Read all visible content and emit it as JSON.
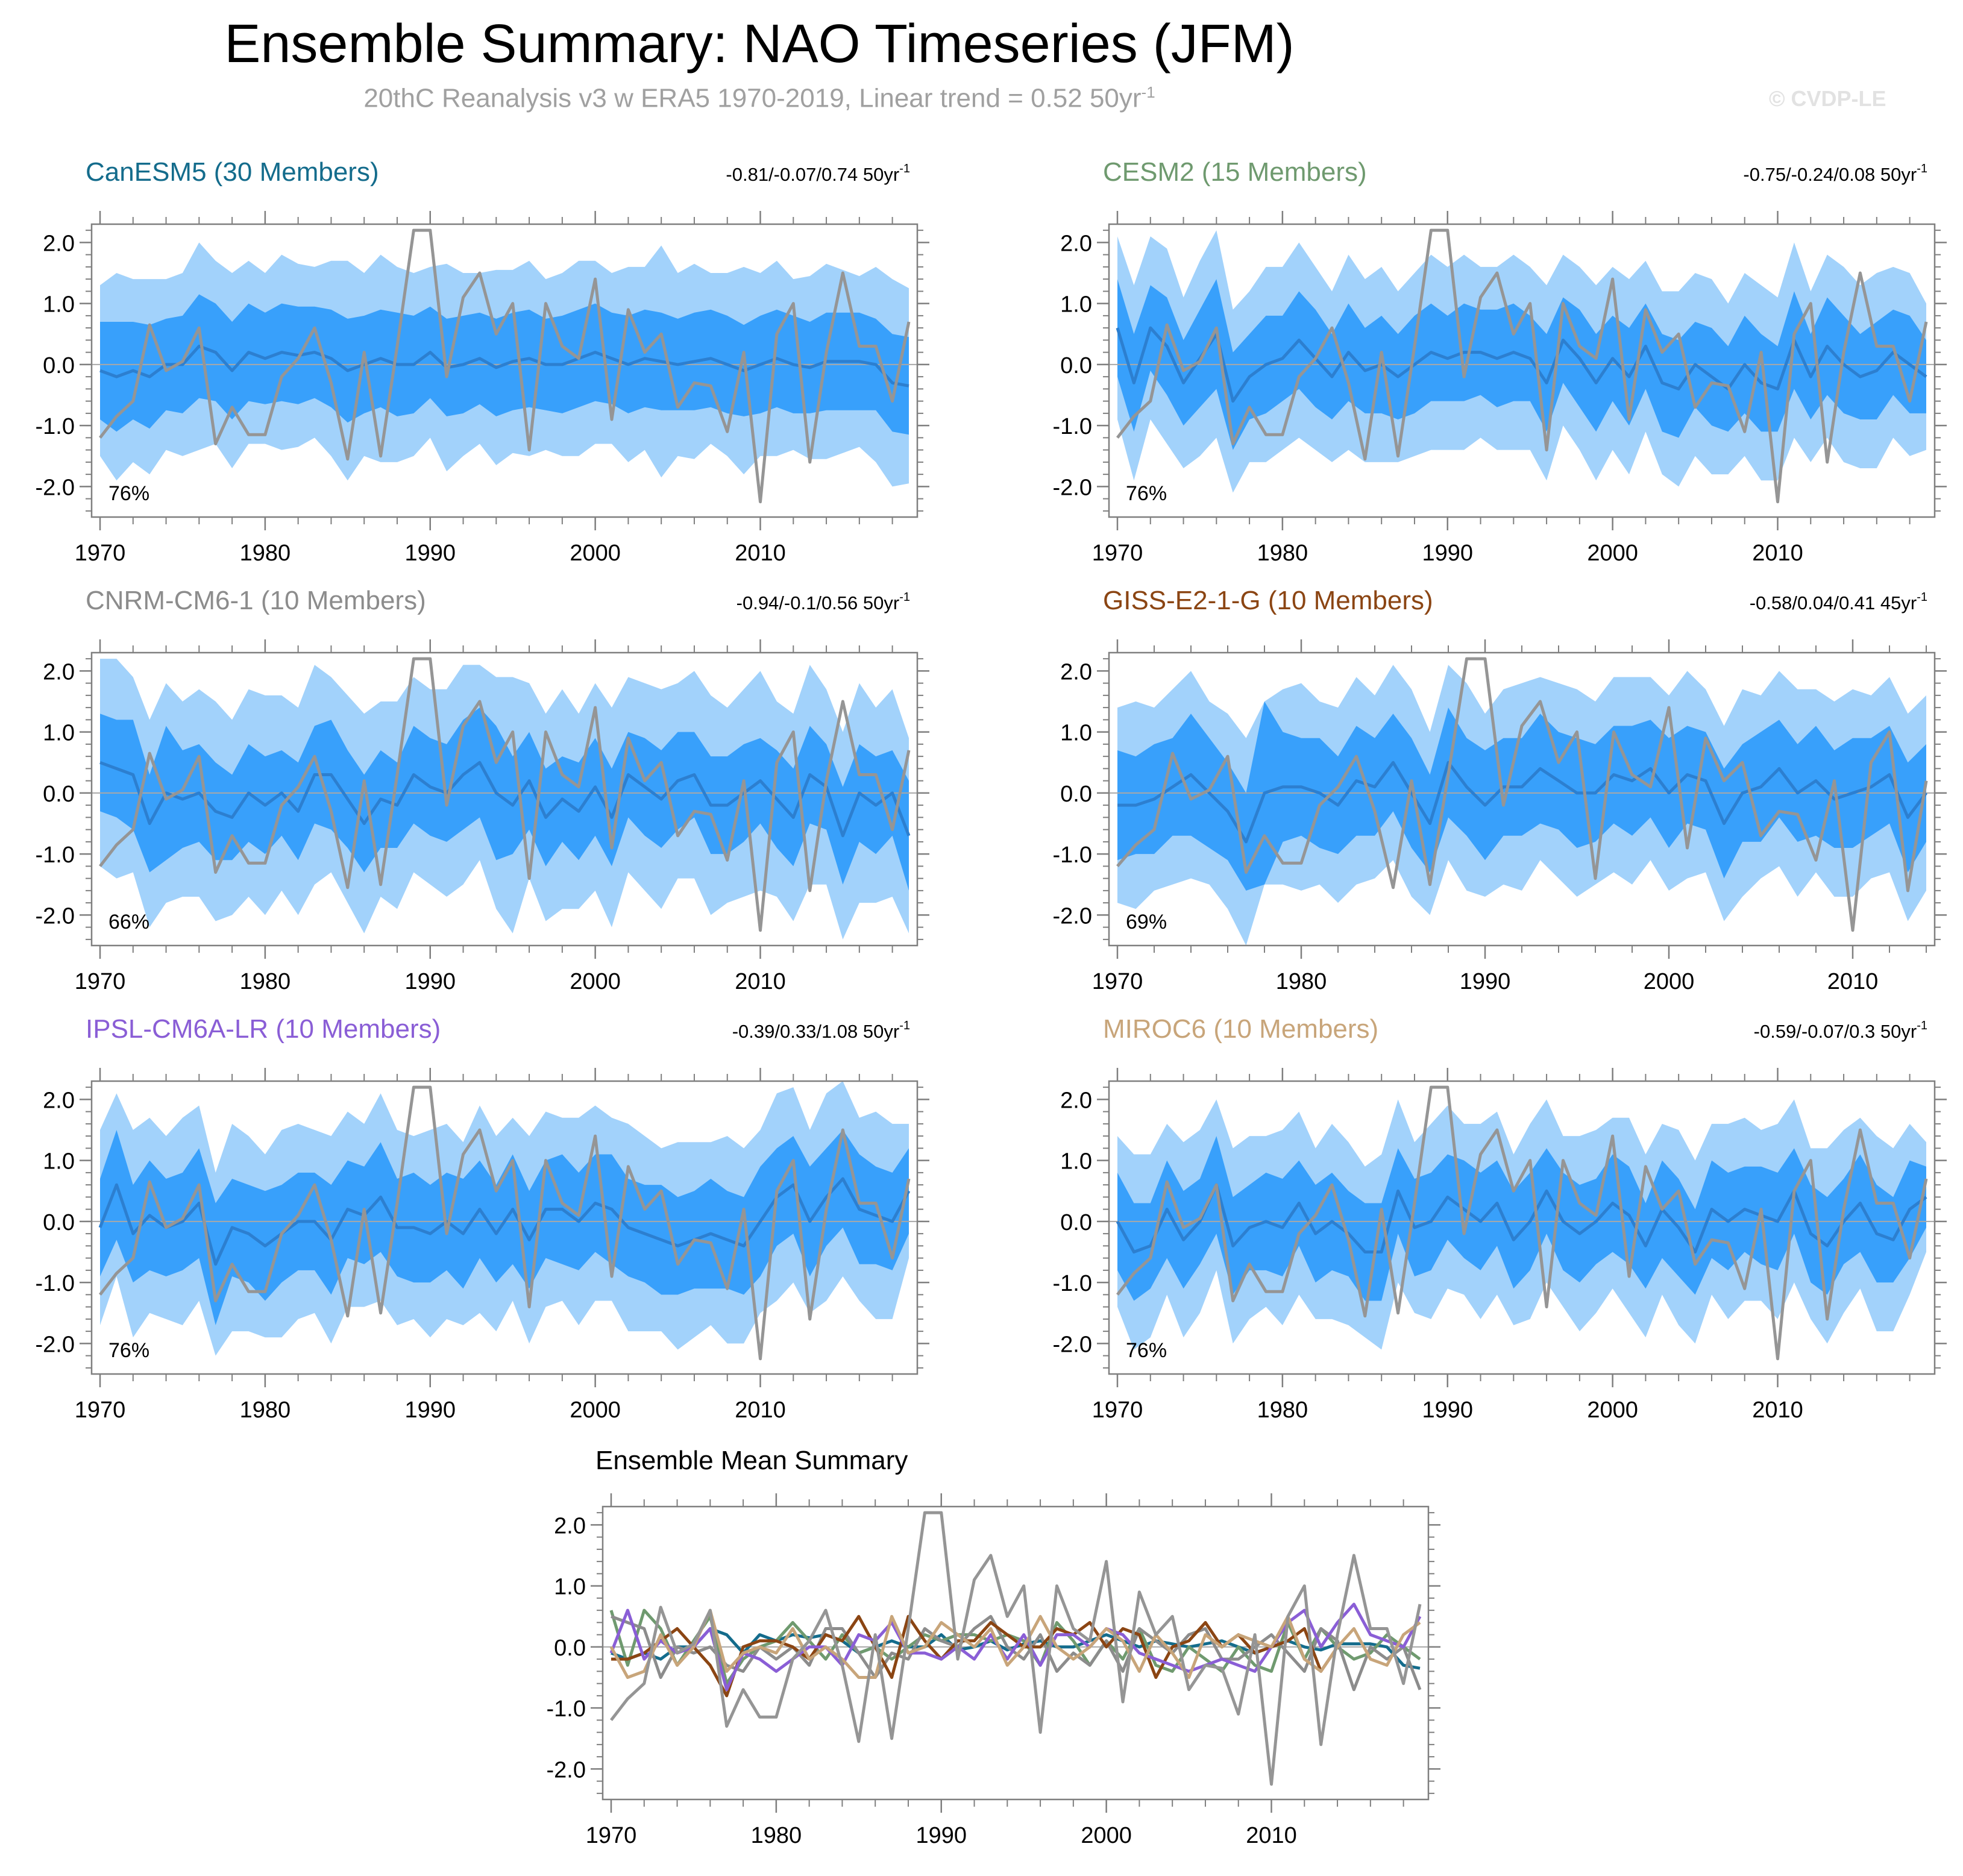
{
  "title": "Ensemble Summary: NAO Timeseries (JFM)",
  "subtitle": {
    "text": "20thC Reanalysis v3 w ERA5 1970-2019, Linear trend = 0.52 50yr",
    "superscript": "-1"
  },
  "watermark": "© CVDP-LE",
  "colors": {
    "band_outer": "#a2d2fb",
    "band_inner": "#38a0fb",
    "ensemble_mean": "#2c7fd0",
    "observations": "#959595",
    "zero_line": "#a8a8a8",
    "axis": "#7f7f7f"
  },
  "chart_data": {
    "type": "line",
    "x": [
      1970,
      1971,
      1972,
      1973,
      1974,
      1975,
      1976,
      1977,
      1978,
      1979,
      1980,
      1981,
      1982,
      1983,
      1984,
      1985,
      1986,
      1987,
      1988,
      1989,
      1990,
      1991,
      1992,
      1993,
      1994,
      1995,
      1996,
      1997,
      1998,
      1999,
      2000,
      2001,
      2002,
      2003,
      2004,
      2005,
      2006,
      2007,
      2008,
      2009,
      2010,
      2011,
      2012,
      2013,
      2014,
      2015,
      2016,
      2017,
      2018,
      2019
    ],
    "observations": {
      "name": "20thC Reanalysis v3 w ERA5",
      "values": [
        -1.2,
        -0.85,
        -0.6,
        0.65,
        -0.1,
        0.05,
        0.6,
        -1.3,
        -0.7,
        -1.15,
        -1.15,
        -0.2,
        0.1,
        0.6,
        -0.3,
        -1.55,
        0.2,
        -1.5,
        0.3,
        2.2,
        2.2,
        -0.2,
        1.1,
        1.5,
        0.5,
        1.0,
        -1.4,
        1.0,
        0.3,
        0.1,
        1.4,
        -0.9,
        0.9,
        0.2,
        0.5,
        -0.7,
        -0.3,
        -0.35,
        -1.1,
        0.2,
        -2.25,
        0.5,
        1.0,
        -1.6,
        0.2,
        1.5,
        0.3,
        0.3,
        -0.6,
        0.7
      ]
    },
    "panels": [
      {
        "name": "CanESM5 (30 Members)",
        "title_color": "#146c8c",
        "trend_label": "-0.81/-0.07/0.74 50yr",
        "trend_sup": "-1",
        "pct": "76%",
        "x_end": 2019,
        "mean": [
          -0.1,
          -0.2,
          -0.1,
          -0.2,
          0.0,
          0.0,
          0.3,
          0.2,
          -0.1,
          0.2,
          0.1,
          0.2,
          0.15,
          0.2,
          0.1,
          -0.1,
          0.0,
          0.1,
          0.0,
          0.0,
          0.2,
          -0.05,
          0.0,
          0.1,
          -0.05,
          0.05,
          0.1,
          0.0,
          0.0,
          0.1,
          0.2,
          0.1,
          0.0,
          0.1,
          0.05,
          0.0,
          0.05,
          0.1,
          0.0,
          -0.1,
          0.0,
          0.1,
          0.0,
          -0.05,
          0.05,
          0.05,
          0.05,
          0.0,
          -0.3,
          -0.35
        ],
        "inner_halfwidth": [
          0.8,
          0.9,
          0.8,
          0.85,
          0.75,
          0.8,
          0.85,
          0.8,
          0.8,
          0.8,
          0.75,
          0.8,
          0.8,
          0.75,
          0.8,
          0.85,
          0.8,
          0.8,
          0.85,
          0.8,
          0.75,
          0.8,
          0.8,
          0.75,
          0.8,
          0.8,
          0.8,
          0.75,
          0.8,
          0.8,
          0.8,
          0.75,
          0.8,
          0.8,
          0.8,
          0.75,
          0.8,
          0.8,
          0.8,
          0.75,
          0.8,
          0.8,
          0.8,
          0.75,
          0.8,
          0.8,
          0.8,
          0.75,
          0.8,
          0.8
        ],
        "outer_halfwidth": [
          1.4,
          1.7,
          1.5,
          1.6,
          1.4,
          1.5,
          1.7,
          1.5,
          1.6,
          1.5,
          1.4,
          1.6,
          1.5,
          1.4,
          1.6,
          1.8,
          1.5,
          1.7,
          1.6,
          1.5,
          1.4,
          1.7,
          1.5,
          1.4,
          1.6,
          1.5,
          1.6,
          1.4,
          1.5,
          1.6,
          1.5,
          1.4,
          1.6,
          1.5,
          1.9,
          1.5,
          1.6,
          1.4,
          1.5,
          1.7,
          1.5,
          1.6,
          1.4,
          1.5,
          1.6,
          1.5,
          1.4,
          1.6,
          1.7,
          1.6
        ]
      },
      {
        "name": "CESM2 (15 Members)",
        "title_color": "#6f9a6f",
        "trend_label": "-0.75/-0.24/0.08 50yr",
        "trend_sup": "-1",
        "pct": "76%",
        "x_end": 2019,
        "mean": [
          0.6,
          -0.3,
          0.6,
          0.3,
          -0.3,
          0.1,
          0.5,
          -0.6,
          -0.2,
          0.0,
          0.1,
          0.4,
          0.1,
          -0.2,
          0.2,
          -0.1,
          0.0,
          -0.2,
          0.0,
          0.2,
          0.1,
          0.2,
          0.2,
          0.1,
          0.2,
          0.1,
          -0.3,
          0.4,
          0.1,
          -0.3,
          0.1,
          -0.2,
          0.3,
          -0.3,
          -0.4,
          0.0,
          -0.2,
          -0.4,
          0.0,
          -0.3,
          -0.4,
          0.4,
          -0.2,
          0.3,
          0.0,
          -0.2,
          -0.1,
          0.2,
          0.0,
          -0.2
        ],
        "inner_halfwidth": [
          0.8,
          0.8,
          0.7,
          0.8,
          0.7,
          0.8,
          0.9,
          0.8,
          0.7,
          0.8,
          0.7,
          0.8,
          0.8,
          0.7,
          0.8,
          0.7,
          0.8,
          0.7,
          0.8,
          0.8,
          0.7,
          0.8,
          0.7,
          0.8,
          0.8,
          0.7,
          0.8,
          0.7,
          0.8,
          0.8,
          0.7,
          0.8,
          0.7,
          0.8,
          0.8,
          0.7,
          0.8,
          0.7,
          0.8,
          0.8,
          0.7,
          0.8,
          0.7,
          0.8,
          0.8,
          0.7,
          0.8,
          0.7,
          0.8,
          0.6
        ],
        "outer_halfwidth": [
          1.5,
          1.6,
          1.5,
          1.6,
          1.4,
          1.6,
          1.7,
          1.5,
          1.4,
          1.6,
          1.5,
          1.6,
          1.5,
          1.4,
          1.6,
          1.5,
          1.6,
          1.4,
          1.5,
          1.6,
          1.5,
          1.6,
          1.4,
          1.5,
          1.6,
          1.5,
          1.6,
          1.4,
          1.5,
          1.6,
          1.5,
          1.6,
          1.4,
          1.5,
          1.6,
          1.5,
          1.6,
          1.4,
          1.5,
          1.6,
          1.5,
          1.6,
          1.4,
          1.5,
          1.6,
          1.5,
          1.6,
          1.4,
          1.5,
          1.2
        ]
      },
      {
        "name": "CNRM-CM6-1 (10 Members)",
        "title_color": "#8c8c8c",
        "trend_label": "-0.94/-0.1/0.56 50yr",
        "trend_sup": "-1",
        "pct": "66%",
        "x_end": 2019,
        "mean": [
          0.5,
          0.4,
          0.3,
          -0.5,
          0.0,
          -0.1,
          0.0,
          -0.3,
          -0.4,
          0.0,
          -0.2,
          0.0,
          -0.3,
          0.3,
          0.3,
          -0.1,
          -0.5,
          -0.1,
          -0.2,
          0.3,
          0.1,
          0.0,
          0.3,
          0.5,
          0.0,
          -0.2,
          0.2,
          -0.4,
          -0.1,
          -0.3,
          0.1,
          -0.4,
          0.3,
          0.1,
          -0.1,
          0.2,
          0.3,
          -0.2,
          -0.2,
          0.0,
          0.2,
          -0.1,
          -0.4,
          0.3,
          0.1,
          -0.7,
          0.0,
          -0.2,
          0.0,
          -0.7
        ],
        "inner_halfwidth": [
          0.8,
          0.8,
          0.9,
          0.8,
          1.1,
          0.8,
          0.8,
          0.8,
          0.7,
          0.8,
          0.8,
          0.7,
          0.8,
          0.8,
          0.9,
          0.8,
          0.8,
          0.8,
          0.7,
          0.8,
          0.8,
          0.8,
          0.9,
          0.9,
          1.1,
          0.8,
          0.8,
          0.8,
          0.7,
          0.8,
          0.8,
          0.8,
          0.7,
          0.8,
          0.8,
          0.8,
          0.7,
          0.8,
          0.8,
          0.8,
          0.7,
          0.8,
          0.8,
          0.8,
          0.7,
          0.8,
          0.8,
          0.8,
          0.7,
          0.9
        ],
        "outer_halfwidth": [
          1.7,
          1.8,
          1.6,
          1.7,
          1.8,
          1.6,
          1.7,
          1.8,
          1.6,
          1.7,
          1.8,
          1.6,
          1.7,
          1.8,
          1.6,
          1.7,
          1.8,
          1.6,
          1.7,
          1.6,
          1.6,
          1.7,
          1.8,
          1.6,
          1.9,
          2.1,
          1.6,
          1.7,
          1.8,
          1.6,
          1.7,
          1.8,
          1.6,
          1.7,
          1.8,
          1.6,
          1.7,
          1.8,
          1.6,
          1.7,
          1.8,
          1.6,
          1.7,
          1.8,
          1.6,
          1.7,
          1.8,
          1.6,
          1.7,
          1.6
        ]
      },
      {
        "name": "GISS-E2-1-G (10 Members)",
        "title_color": "#8b4513",
        "trend_label": "-0.58/0.04/0.41 45yr",
        "trend_sup": "-1",
        "pct": "69%",
        "x_end": 2014,
        "mean": [
          -0.2,
          -0.2,
          -0.1,
          0.1,
          0.3,
          0.0,
          -0.3,
          -0.8,
          0.0,
          0.1,
          0.1,
          0.0,
          -0.2,
          0.2,
          0.1,
          0.5,
          0.0,
          -0.5,
          0.5,
          0.1,
          -0.2,
          0.1,
          0.1,
          0.4,
          0.2,
          0.0,
          0.0,
          0.3,
          0.2,
          0.4,
          0.0,
          0.3,
          0.2,
          -0.5,
          0.0,
          0.1,
          0.4,
          0.0,
          0.2,
          -0.1,
          0.0,
          0.1,
          0.3,
          -0.4,
          0.0
        ],
        "inner_halfwidth": [
          0.9,
          0.8,
          0.9,
          0.8,
          1.0,
          0.9,
          0.8,
          0.8,
          1.5,
          0.9,
          0.8,
          0.9,
          0.8,
          0.9,
          0.8,
          0.8,
          0.9,
          0.8,
          0.9,
          0.8,
          0.9,
          0.8,
          0.8,
          0.9,
          0.8,
          0.9,
          0.8,
          0.8,
          0.9,
          0.8,
          0.9,
          0.8,
          0.8,
          0.9,
          0.8,
          0.9,
          0.8,
          0.8,
          0.9,
          0.8,
          0.9,
          0.8,
          0.8,
          0.9,
          0.8
        ],
        "outer_halfwidth": [
          1.6,
          1.7,
          1.5,
          1.6,
          1.7,
          1.5,
          1.6,
          1.7,
          1.5,
          1.6,
          1.7,
          1.5,
          1.6,
          1.7,
          1.5,
          1.6,
          1.7,
          1.5,
          1.6,
          1.7,
          1.5,
          1.6,
          1.7,
          1.5,
          1.6,
          1.7,
          1.5,
          1.6,
          1.7,
          1.5,
          1.6,
          1.7,
          1.5,
          1.6,
          1.7,
          1.5,
          1.6,
          1.7,
          1.5,
          1.6,
          1.7,
          1.5,
          1.6,
          1.7,
          1.6
        ]
      },
      {
        "name": "IPSL-CM6A-LR (10 Members)",
        "title_color": "#8a5ed6",
        "trend_label": "-0.39/0.33/1.08 50yr",
        "trend_sup": "-1",
        "pct": "76%",
        "x_end": 2019,
        "mean": [
          -0.1,
          0.6,
          -0.2,
          0.1,
          -0.1,
          0.0,
          0.3,
          -0.7,
          -0.1,
          -0.2,
          -0.4,
          -0.2,
          0.0,
          0.0,
          -0.3,
          0.2,
          0.1,
          0.4,
          -0.1,
          -0.1,
          -0.2,
          0.0,
          -0.2,
          0.2,
          -0.2,
          0.2,
          -0.3,
          0.2,
          0.2,
          0.0,
          0.3,
          0.2,
          -0.1,
          -0.2,
          -0.3,
          -0.4,
          -0.3,
          -0.2,
          -0.3,
          -0.4,
          0.0,
          0.4,
          0.6,
          0.0,
          0.4,
          0.7,
          0.2,
          0.1,
          0.0,
          0.5
        ],
        "inner_halfwidth": [
          0.8,
          0.9,
          0.8,
          0.9,
          0.8,
          0.8,
          0.9,
          1.0,
          0.8,
          0.8,
          0.9,
          0.8,
          0.8,
          0.8,
          0.9,
          0.8,
          0.8,
          0.9,
          0.8,
          0.9,
          0.8,
          0.8,
          0.9,
          0.8,
          0.8,
          0.9,
          0.8,
          0.8,
          0.9,
          0.8,
          0.8,
          0.9,
          0.8,
          0.8,
          0.9,
          0.8,
          0.8,
          0.9,
          0.8,
          0.8,
          0.9,
          0.8,
          0.8,
          0.9,
          0.8,
          0.8,
          0.9,
          0.8,
          0.8,
          0.7
        ],
        "outer_halfwidth": [
          1.6,
          1.5,
          1.7,
          1.6,
          1.5,
          1.7,
          1.6,
          1.5,
          1.7,
          1.6,
          1.5,
          1.7,
          1.6,
          1.5,
          1.7,
          1.6,
          1.5,
          1.7,
          1.6,
          1.5,
          1.7,
          1.6,
          1.5,
          1.7,
          1.6,
          1.5,
          1.7,
          1.6,
          1.5,
          1.7,
          1.6,
          1.5,
          1.7,
          1.6,
          1.5,
          1.7,
          1.6,
          1.5,
          1.7,
          1.6,
          1.5,
          1.7,
          1.6,
          1.5,
          1.7,
          1.6,
          1.5,
          1.7,
          1.6,
          1.1
        ]
      },
      {
        "name": "MIROC6 (10 Members)",
        "title_color": "#c8a57a",
        "trend_label": "-0.59/-0.07/0.3 50yr",
        "trend_sup": "-1",
        "pct": "76%",
        "x_end": 2019,
        "mean": [
          0.0,
          -0.5,
          -0.4,
          0.2,
          -0.3,
          0.0,
          0.6,
          -0.4,
          -0.1,
          0.0,
          -0.1,
          0.3,
          -0.2,
          0.0,
          -0.2,
          -0.5,
          -0.5,
          0.5,
          -0.1,
          0.0,
          0.4,
          0.2,
          0.0,
          0.3,
          -0.3,
          0.0,
          0.5,
          0.0,
          -0.2,
          0.0,
          0.3,
          0.1,
          -0.4,
          0.2,
          -0.1,
          -0.5,
          0.2,
          0.0,
          0.2,
          0.1,
          0.0,
          0.5,
          -0.2,
          -0.4,
          0.0,
          0.3,
          -0.2,
          -0.3,
          0.2,
          0.4
        ],
        "inner_halfwidth": [
          0.8,
          0.8,
          0.7,
          0.8,
          0.8,
          0.7,
          0.8,
          0.8,
          0.7,
          0.8,
          0.8,
          0.7,
          0.8,
          0.8,
          0.7,
          0.8,
          0.8,
          0.7,
          0.8,
          0.8,
          0.7,
          0.8,
          0.8,
          0.7,
          0.8,
          0.8,
          0.7,
          0.8,
          0.8,
          0.7,
          0.8,
          0.8,
          0.7,
          0.8,
          0.8,
          0.7,
          0.8,
          0.8,
          0.7,
          0.8,
          0.8,
          0.7,
          0.8,
          0.8,
          0.7,
          0.8,
          0.8,
          0.7,
          0.8,
          0.5
        ],
        "outer_halfwidth": [
          1.4,
          1.6,
          1.5,
          1.4,
          1.6,
          1.5,
          1.4,
          1.6,
          1.5,
          1.4,
          1.6,
          1.5,
          1.4,
          1.6,
          1.5,
          1.4,
          1.6,
          1.5,
          1.4,
          1.6,
          1.5,
          1.4,
          1.6,
          1.5,
          1.4,
          1.6,
          1.5,
          1.4,
          1.6,
          1.5,
          1.4,
          1.6,
          1.5,
          1.4,
          1.6,
          1.5,
          1.4,
          1.6,
          1.5,
          1.4,
          1.6,
          1.5,
          1.4,
          1.6,
          1.5,
          1.4,
          1.6,
          1.5,
          1.4,
          0.9
        ]
      }
    ],
    "summary": {
      "title": "Ensemble Mean Summary"
    },
    "axes": {
      "ylim": [
        -2.5,
        2.3
      ],
      "yticks": [
        2.0,
        1.0,
        0.0,
        -1.0,
        -2.0
      ],
      "ytick_labels": [
        "2.0",
        "1.0",
        "0.0",
        "-1.0",
        "-2.0"
      ],
      "xticks": [
        1970,
        1980,
        1990,
        2000,
        2010
      ],
      "xtick_labels": [
        "1970",
        "1980",
        "1990",
        "2000",
        "2010"
      ]
    }
  }
}
